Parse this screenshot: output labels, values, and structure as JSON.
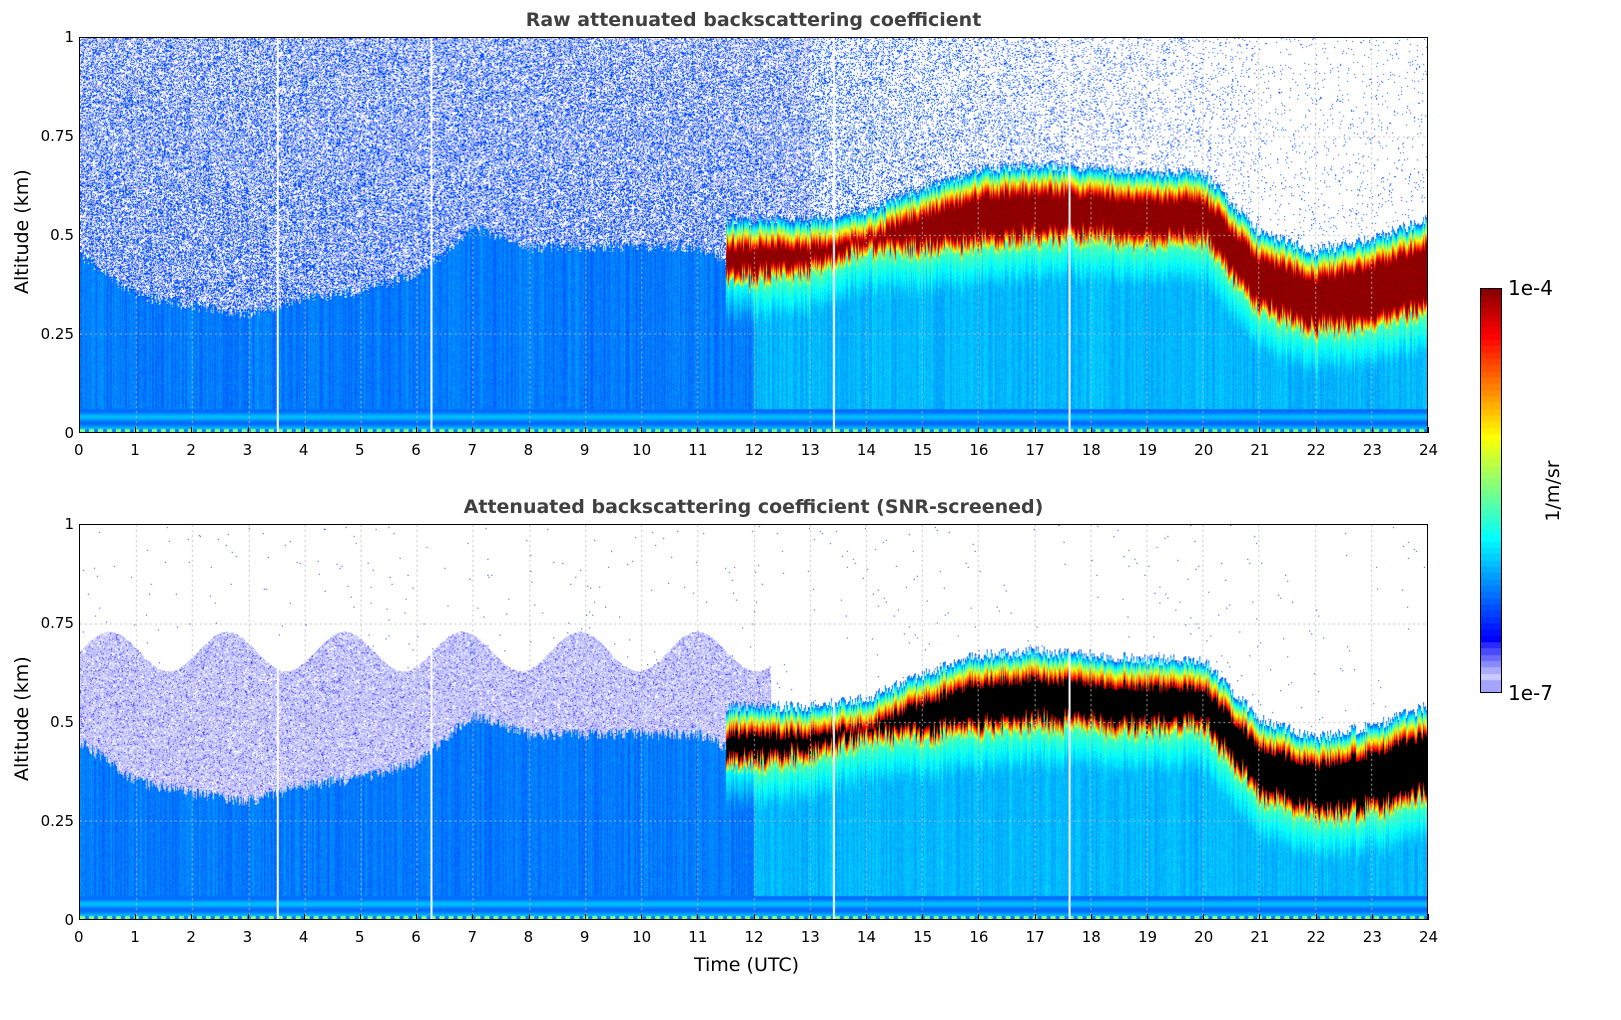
{
  "chart_data": [
    {
      "type": "heatmap",
      "title": "Raw attenuated backscattering coefficient",
      "xlabel": "",
      "ylabel": "Altitude (km)",
      "xlim": [
        0,
        24
      ],
      "ylim": [
        0,
        1
      ],
      "xticks": [
        0,
        1,
        2,
        3,
        4,
        5,
        6,
        7,
        8,
        9,
        10,
        11,
        12,
        13,
        14,
        15,
        16,
        17,
        18,
        19,
        20,
        21,
        22,
        23,
        24
      ],
      "yticks": [
        0,
        0.25,
        0.5,
        0.75,
        1
      ],
      "ytick_labels": [
        "0",
        "0.25",
        "0.5",
        "0.75",
        "1"
      ],
      "grid": true,
      "screened": false
    },
    {
      "type": "heatmap",
      "title": "Attenuated backscattering coefficient (SNR-screened)",
      "xlabel": "Time (UTC)",
      "ylabel": "Altitude (km)",
      "xlim": [
        0,
        24
      ],
      "ylim": [
        0,
        1
      ],
      "xticks": [
        0,
        1,
        2,
        3,
        4,
        5,
        6,
        7,
        8,
        9,
        10,
        11,
        12,
        13,
        14,
        15,
        16,
        17,
        18,
        19,
        20,
        21,
        22,
        23,
        24
      ],
      "yticks": [
        0,
        0.25,
        0.5,
        0.75,
        1
      ],
      "ytick_labels": [
        "0",
        "0.25",
        "0.5",
        "0.75",
        "1"
      ],
      "grid": true,
      "screened": true
    }
  ],
  "profiles": {
    "hours": [
      0,
      1,
      2,
      3,
      4,
      5,
      6,
      7,
      8,
      9,
      10,
      11,
      12,
      13,
      14,
      15,
      16,
      17,
      18,
      19,
      20,
      21,
      22,
      23,
      24
    ],
    "aerosol_top_km": [
      0.45,
      0.35,
      0.32,
      0.3,
      0.34,
      0.36,
      0.4,
      0.52,
      0.47,
      0.47,
      0.47,
      0.47,
      0.4,
      0.5,
      0.52,
      0.58,
      0.63,
      0.64,
      0.63,
      0.62,
      0.62,
      0.47,
      0.42,
      0.45,
      0.5
    ],
    "cloud_top_km": [
      null,
      null,
      null,
      null,
      null,
      null,
      null,
      null,
      null,
      null,
      null,
      null,
      0.5,
      0.5,
      0.52,
      0.58,
      0.63,
      0.64,
      0.63,
      0.62,
      0.62,
      0.47,
      0.42,
      0.45,
      0.5
    ],
    "cloud_base_km": [
      null,
      null,
      null,
      null,
      null,
      null,
      null,
      null,
      null,
      null,
      null,
      null,
      0.38,
      0.4,
      0.45,
      0.45,
      0.47,
      0.48,
      0.48,
      0.47,
      0.48,
      0.3,
      0.25,
      0.26,
      0.3
    ],
    "data_gaps_utc": [
      3.52,
      6.25,
      13.42,
      17.62
    ]
  },
  "colorbar": {
    "label": "1/m/sr",
    "max_label": "1e-4",
    "min_label": "1e-7",
    "log_min": -7,
    "log_max": -4
  }
}
